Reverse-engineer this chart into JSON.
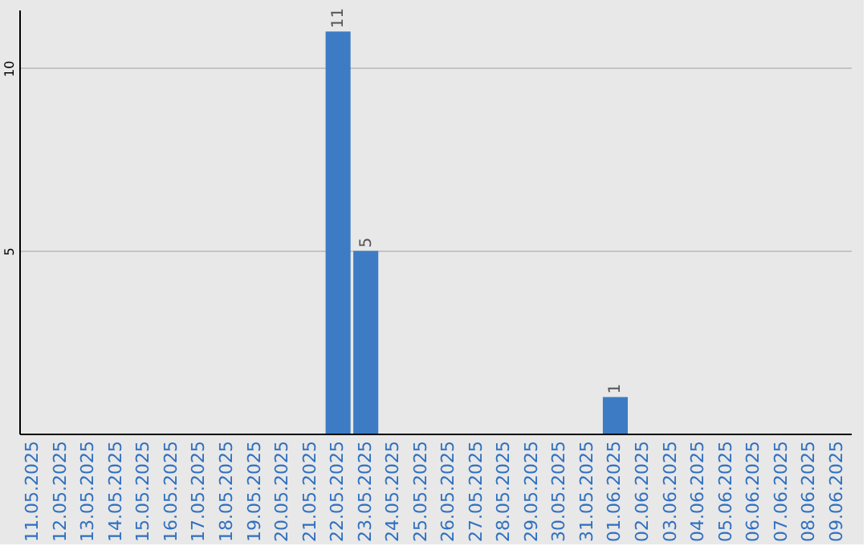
{
  "chart_data": {
    "type": "bar",
    "categories": [
      "11.05.2025",
      "12.05.2025",
      "13.05.2025",
      "14.05.2025",
      "15.05.2025",
      "16.05.2025",
      "17.05.2025",
      "18.05.2025",
      "19.05.2025",
      "20.05.2025",
      "21.05.2025",
      "22.05.2025",
      "23.05.2025",
      "24.05.2025",
      "25.05.2025",
      "26.05.2025",
      "27.05.2025",
      "28.05.2025",
      "29.05.2025",
      "30.05.2025",
      "31.05.2025",
      "01.06.2025",
      "02.06.2025",
      "03.06.2025",
      "04.06.2025",
      "05.06.2025",
      "06.06.2025",
      "07.06.2025",
      "08.06.2025",
      "09.06.2025"
    ],
    "values": [
      null,
      null,
      null,
      null,
      null,
      null,
      null,
      null,
      null,
      null,
      null,
      11,
      5,
      null,
      null,
      null,
      null,
      null,
      null,
      null,
      null,
      1,
      null,
      null,
      null,
      null,
      null,
      null,
      null,
      null
    ],
    "color": "#3d7cc4",
    "ylim": [
      0,
      11.6
    ],
    "yticks": [
      5,
      10
    ],
    "grid": "y",
    "data_labels": true
  }
}
